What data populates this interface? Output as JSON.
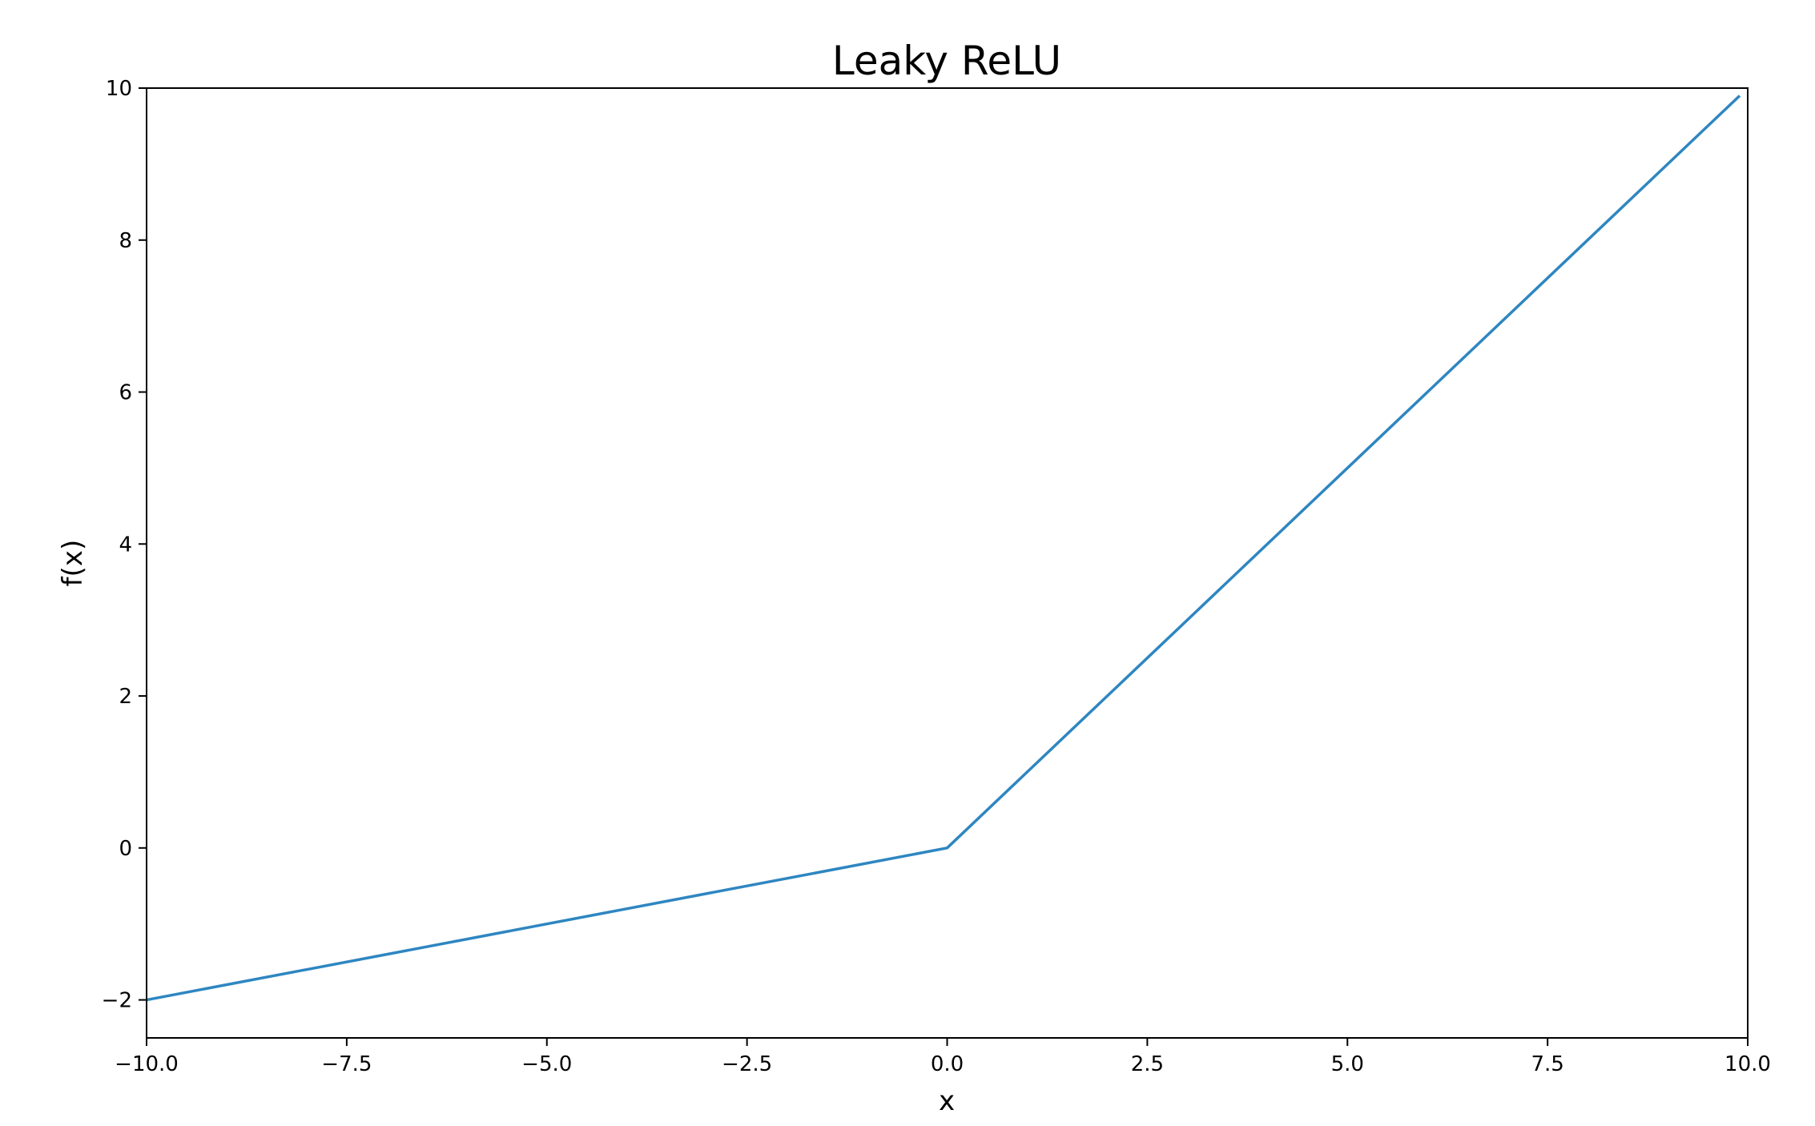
{
  "chart_data": {
    "type": "line",
    "title": "Leaky ReLU",
    "xlabel": "x",
    "ylabel": "f(x)",
    "xlim": [
      -10,
      10
    ],
    "ylim": [
      -2.5,
      10
    ],
    "xticks": [
      -10.0,
      -7.5,
      -5.0,
      -2.5,
      0.0,
      2.5,
      5.0,
      7.5,
      10.0
    ],
    "xtick_labels": [
      "−10.0",
      "−7.5",
      "−5.0",
      "−2.5",
      "0.0",
      "2.5",
      "5.0",
      "7.5",
      "10.0"
    ],
    "yticks": [
      -2,
      0,
      2,
      4,
      6,
      8,
      10
    ],
    "ytick_labels": [
      "−2",
      "0",
      "2",
      "4",
      "6",
      "8",
      "10"
    ],
    "grid": false,
    "series": [
      {
        "color": "#2e86c1",
        "x": [
          -10.0,
          0.0,
          9.9
        ],
        "y": [
          -2.0,
          0.0,
          9.9
        ]
      }
    ]
  }
}
